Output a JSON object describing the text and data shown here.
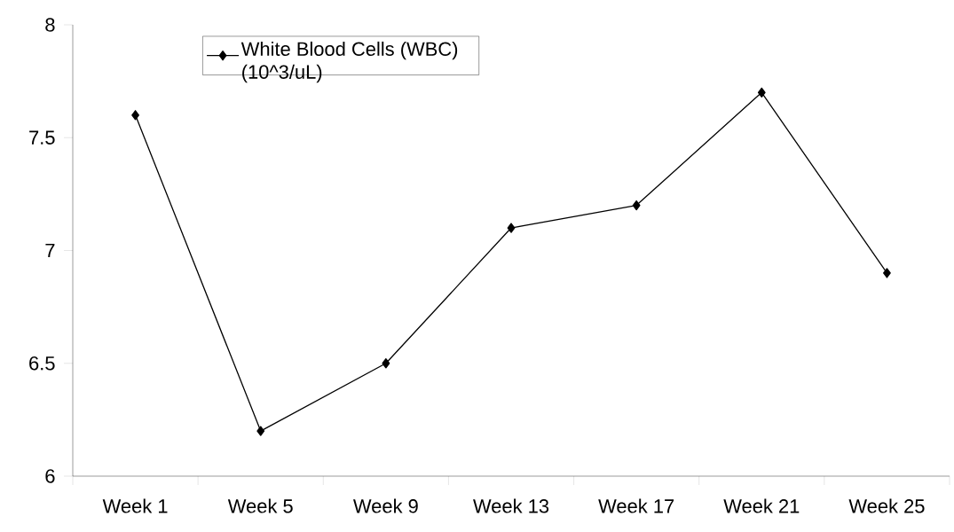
{
  "chart_data": {
    "type": "line",
    "categories": [
      "Week 1",
      "Week 5",
      "Week 9",
      "Week 13",
      "Week 17",
      "Week 21",
      "Week 25"
    ],
    "series": [
      {
        "name": "White Blood Cells (WBC) (10^3/uL)",
        "color": "#000000",
        "values": [
          7.6,
          6.2,
          6.5,
          7.1,
          7.2,
          7.7,
          6.9
        ]
      }
    ],
    "ylim": [
      6,
      8
    ],
    "yticks": [
      6,
      6.5,
      7,
      7.5,
      8
    ],
    "marker": "diamond",
    "line_style": "solid",
    "legend": "top left",
    "grid": false
  }
}
